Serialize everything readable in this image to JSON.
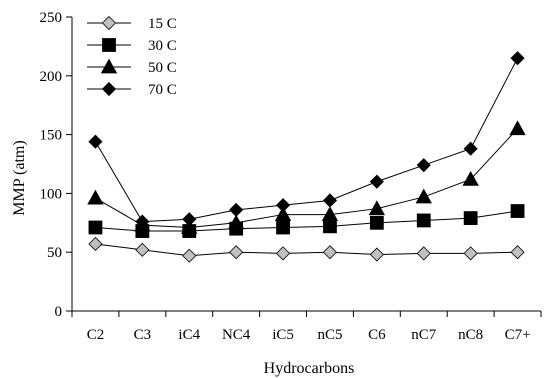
{
  "chart_data": {
    "type": "line",
    "title": "",
    "xlabel": "Hydrocarbons",
    "ylabel": "MMP (atm)",
    "categories": [
      "C2",
      "C3",
      "iC4",
      "NC4",
      "iC5",
      "nC5",
      "C6",
      "nC7",
      "nC8",
      "C7+"
    ],
    "yticks": [
      "0",
      "50",
      "100",
      "150",
      "200",
      "250"
    ],
    "ylim": [
      0,
      250
    ],
    "grid": false,
    "legend_position": "top-left",
    "series": [
      {
        "name": "15 C",
        "marker": "diamond",
        "fill": "#c0c0c0",
        "values": [
          57,
          52,
          47,
          50,
          49,
          50,
          48,
          49,
          49,
          50
        ]
      },
      {
        "name": "30 C",
        "marker": "square",
        "fill": "#000000",
        "values": [
          71,
          68,
          68,
          70,
          71,
          72,
          75,
          77,
          79,
          85
        ]
      },
      {
        "name": "50 C",
        "marker": "triangle",
        "fill": "#000000",
        "values": [
          96,
          73,
          71,
          75,
          82,
          82,
          87,
          97,
          112,
          155
        ]
      },
      {
        "name": "70 C",
        "marker": "diamond",
        "fill": "#000000",
        "values": [
          144,
          76,
          78,
          86,
          90,
          94,
          110,
          124,
          138,
          215
        ]
      }
    ]
  }
}
